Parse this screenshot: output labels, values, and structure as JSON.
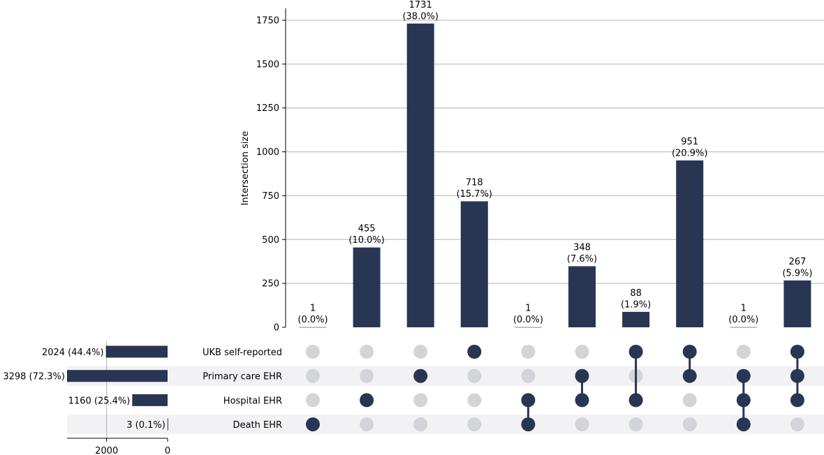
{
  "chart_data": {
    "type": "upset",
    "colors": {
      "bar": "#283654",
      "dot_active": "#283654",
      "dot_inactive": "#d2d4d9",
      "stripe": "#f2f2f5",
      "grid": "#b0b0b0"
    },
    "sets": [
      {
        "name": "UKB self-reported",
        "size_label": "2024 (44.4%)",
        "size": 2024
      },
      {
        "name": "Primary care EHR",
        "size_label": "3298 (72.3%)",
        "size": 3298
      },
      {
        "name": "Hospital EHR",
        "size_label": "1160 (25.4%)",
        "size": 1160
      },
      {
        "name": "Death EHR",
        "size_label": "3 (0.1%)",
        "size": 3
      }
    ],
    "intersections": [
      {
        "value": 1,
        "count_label": "1",
        "pct_label": "(0.0%)",
        "members": [
          3
        ]
      },
      {
        "value": 455,
        "count_label": "455",
        "pct_label": "(10.0%)",
        "members": [
          2
        ]
      },
      {
        "value": 1731,
        "count_label": "1731",
        "pct_label": "(38.0%)",
        "members": [
          1
        ]
      },
      {
        "value": 718,
        "count_label": "718",
        "pct_label": "(15.7%)",
        "members": [
          0
        ]
      },
      {
        "value": 1,
        "count_label": "1",
        "pct_label": "(0.0%)",
        "members": [
          2,
          3
        ]
      },
      {
        "value": 348,
        "count_label": "348",
        "pct_label": "(7.6%)",
        "members": [
          1,
          2
        ]
      },
      {
        "value": 88,
        "count_label": "88",
        "pct_label": "(1.9%)",
        "members": [
          0,
          2
        ]
      },
      {
        "value": 951,
        "count_label": "951",
        "pct_label": "(20.9%)",
        "members": [
          0,
          1
        ]
      },
      {
        "value": 1,
        "count_label": "1",
        "pct_label": "(0.0%)",
        "members": [
          1,
          2,
          3
        ]
      },
      {
        "value": 267,
        "count_label": "267",
        "pct_label": "(5.9%)",
        "members": [
          0,
          1,
          2
        ]
      }
    ],
    "ylabel": "Intersection size",
    "yticks": [
      0,
      250,
      500,
      750,
      1000,
      1250,
      1500,
      1750
    ],
    "ylim": [
      0,
      1817.55
    ],
    "set_size_ticks": [
      2000,
      0
    ],
    "set_size_xlim": [
      3298,
      0
    ]
  }
}
